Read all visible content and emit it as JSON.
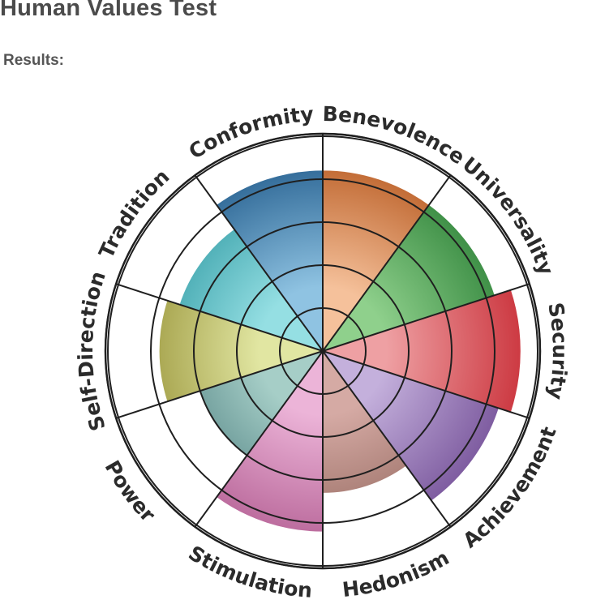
{
  "header": {
    "title": "Human Values Test",
    "results_label": "Results:"
  },
  "chart_data": {
    "type": "polar-area",
    "ring_count": 5,
    "max_value": 5,
    "categories": [
      "Benevolence",
      "Universality",
      "Security",
      "Achievement",
      "Hedonism",
      "Stimulation",
      "Power",
      "Self-Direction",
      "Tradition",
      "Conformity"
    ],
    "values": [
      4.2,
      4.2,
      4.6,
      4.3,
      3.3,
      4.2,
      3.0,
      3.8,
      3.5,
      4.2
    ],
    "colors": {
      "Benevolence": [
        "#f5c19b",
        "#b5561c"
      ],
      "Universality": [
        "#8fd08c",
        "#2a7f35"
      ],
      "Security": [
        "#eea0a3",
        "#c92f38"
      ],
      "Achievement": [
        "#c4b0dc",
        "#6f4a93"
      ],
      "Hedonism": [
        "#d5aaa4",
        "#8c6157"
      ],
      "Stimulation": [
        "#ecb4d8",
        "#b05a8f"
      ],
      "Power": [
        "#a6cec7",
        "#3c6f72"
      ],
      "Self-Direction": [
        "#e1e6a2",
        "#918b2e"
      ],
      "Tradition": [
        "#95dfe3",
        "#23919b"
      ],
      "Conformity": [
        "#8fc3e2",
        "#1d5788"
      ]
    }
  }
}
